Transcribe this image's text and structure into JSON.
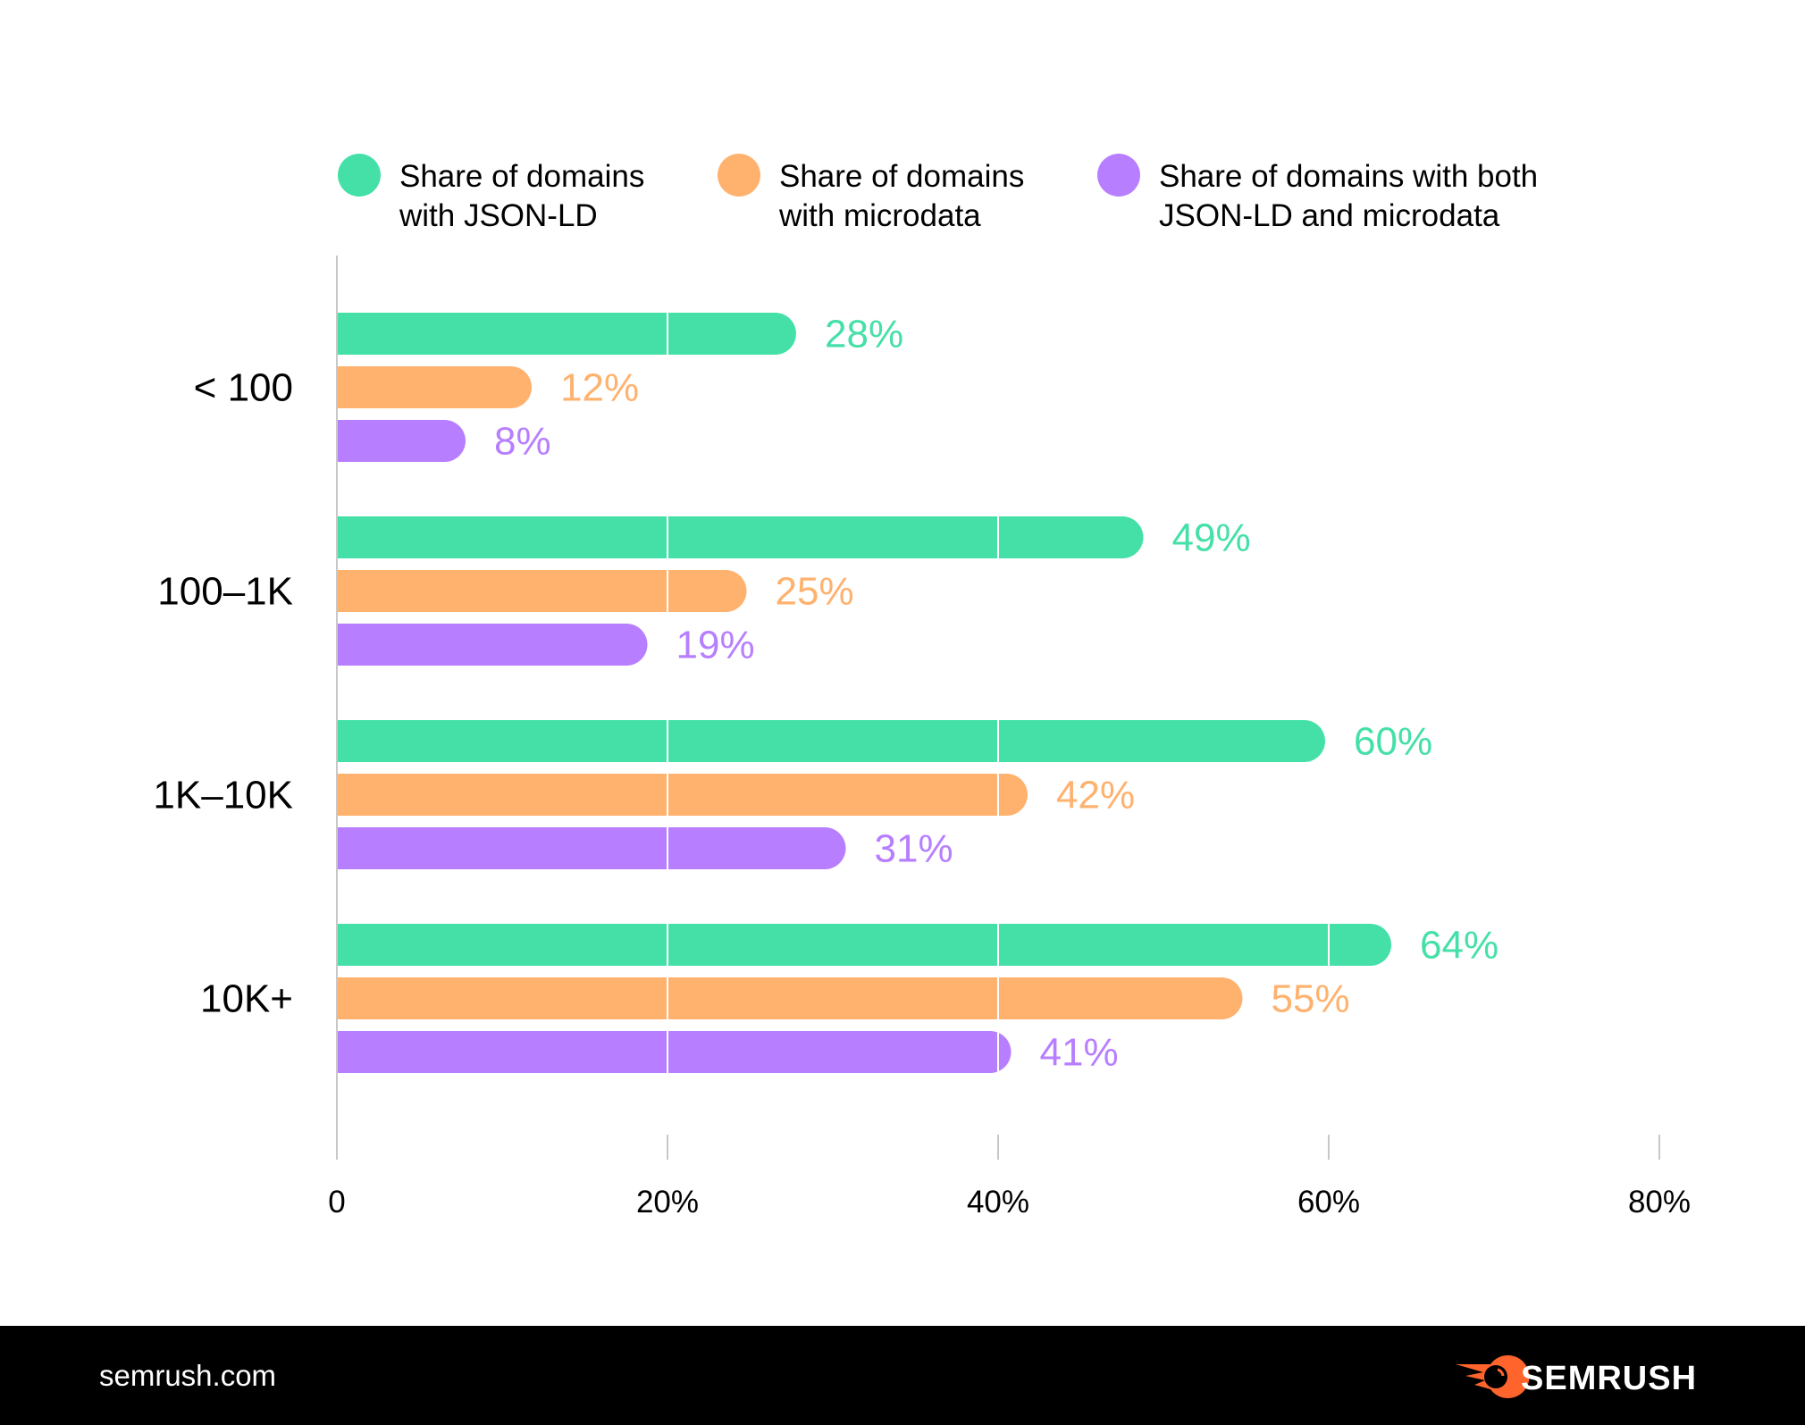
{
  "chart_data": {
    "type": "bar",
    "orientation": "horizontal",
    "title": "",
    "xlabel": "",
    "ylabel": "",
    "xlim": [
      0,
      80
    ],
    "x_ticks": [
      0,
      20,
      40,
      60,
      80
    ],
    "x_tick_labels": [
      "0",
      "20%",
      "40%",
      "60%",
      "80%"
    ],
    "grid": true,
    "legend_position": "top",
    "categories": [
      "< 100",
      "100–1K",
      "1K–10K",
      "10K+"
    ],
    "series": [
      {
        "name": "Share of domains with JSON-LD",
        "legend_lines": [
          "Share of domains",
          "with JSON-LD"
        ],
        "color": "#45E0A8",
        "values": [
          28,
          49,
          60,
          64
        ],
        "labels": [
          "28%",
          "49%",
          "60%",
          "64%"
        ]
      },
      {
        "name": "Share of domains with microdata",
        "legend_lines": [
          "Share of domains",
          "with microdata"
        ],
        "color": "#FFB16E",
        "values": [
          12,
          25,
          42,
          55
        ],
        "labels": [
          "12%",
          "25%",
          "42%",
          "55%"
        ]
      },
      {
        "name": "Share of domains with both JSON-LD and microdata",
        "legend_lines": [
          "Share of domains with both",
          "JSON-LD and microdata"
        ],
        "color": "#B77FFF",
        "values": [
          8,
          19,
          31,
          41
        ],
        "labels": [
          "8%",
          "19%",
          "31%",
          "41%"
        ]
      }
    ]
  },
  "footer": {
    "site": "semrush.com",
    "brand": "SEMRUSH",
    "brand_color": "#FF642D"
  }
}
